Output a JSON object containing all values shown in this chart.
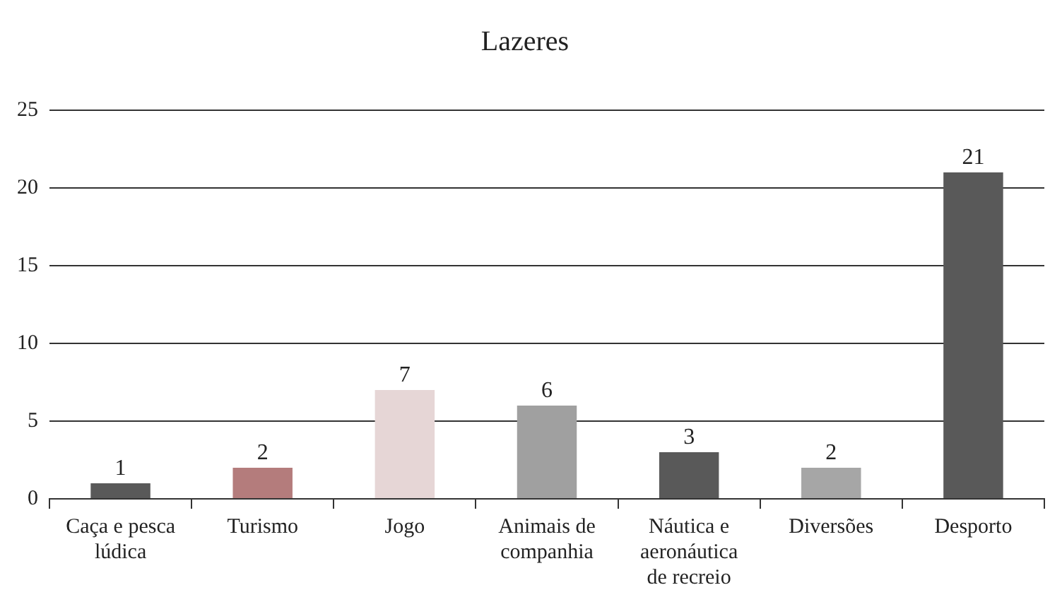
{
  "chart_data": {
    "type": "bar",
    "title": "Lazeres",
    "categories": [
      "Caça e pesca lúdica",
      "Turismo",
      "Jogo",
      "Animais de companhia",
      "Náutica e aeronáutica de recreio",
      "Diversões",
      "Desporto"
    ],
    "values": [
      1,
      2,
      7,
      6,
      3,
      2,
      21
    ],
    "colors": [
      "#595959",
      "#b47c7c",
      "#e6d6d6",
      "#a0a0a0",
      "#595959",
      "#a6a6a6",
      "#595959"
    ],
    "ylim": [
      0,
      25
    ],
    "yticks": [
      0,
      5,
      10,
      15,
      20,
      25
    ],
    "grid": "y",
    "data_labels": true
  }
}
